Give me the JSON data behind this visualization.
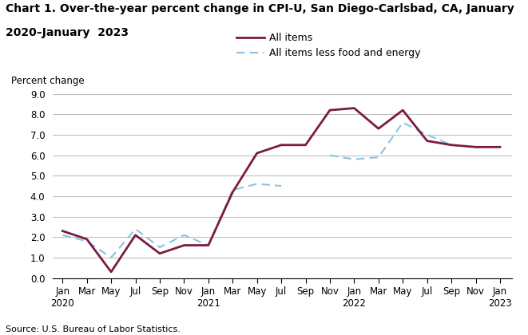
{
  "title_line1": "Chart 1. Over-the-year percent change in CPI-U, San Diego-Carlsbad, CA, January",
  "title_line2": "2020–January  2023",
  "ylabel_text": "Percent change",
  "source": "Source: U.S. Bureau of Labor Statistics.",
  "ylim": [
    0.0,
    9.0
  ],
  "yticks": [
    0.0,
    1.0,
    2.0,
    3.0,
    4.0,
    5.0,
    6.0,
    7.0,
    8.0,
    9.0
  ],
  "all_items": {
    "label": "All items",
    "color": "#7B1C3E",
    "linewidth": 2.0,
    "values": [
      2.3,
      1.9,
      0.3,
      2.1,
      1.2,
      1.6,
      1.6,
      4.2,
      6.1,
      6.5,
      6.5,
      8.2,
      8.3,
      7.3,
      8.2,
      6.7,
      6.5,
      6.4,
      6.4
    ]
  },
  "all_items_less": {
    "label": "All items less food and energy",
    "color": "#89C4E1",
    "linewidth": 1.5,
    "values": [
      2.1,
      1.8,
      1.0,
      2.4,
      1.5,
      2.1,
      1.6,
      4.3,
      4.6,
      4.5,
      null,
      6.0,
      5.8,
      5.9,
      7.6,
      7.0,
      6.5,
      null,
      6.4
    ]
  },
  "x_tick_labels": [
    "Jan\n2020",
    "Mar",
    "May",
    "Jul",
    "Sep",
    "Nov",
    "Jan\n2021",
    "Mar",
    "May",
    "Jul",
    "Sep",
    "Nov",
    "Jan\n2022",
    "Mar",
    "May",
    "Jul",
    "Sep",
    "Nov",
    "Jan\n2023"
  ],
  "x_tick_positions": [
    0,
    2,
    4,
    6,
    8,
    10,
    12,
    14,
    16,
    18,
    20,
    22,
    24,
    26,
    28,
    30,
    32,
    34,
    36
  ],
  "background_color": "#FFFFFF",
  "grid_color": "#C0C0C0",
  "tick_fontsize": 8.5,
  "legend_fontsize": 9,
  "source_fontsize": 8
}
